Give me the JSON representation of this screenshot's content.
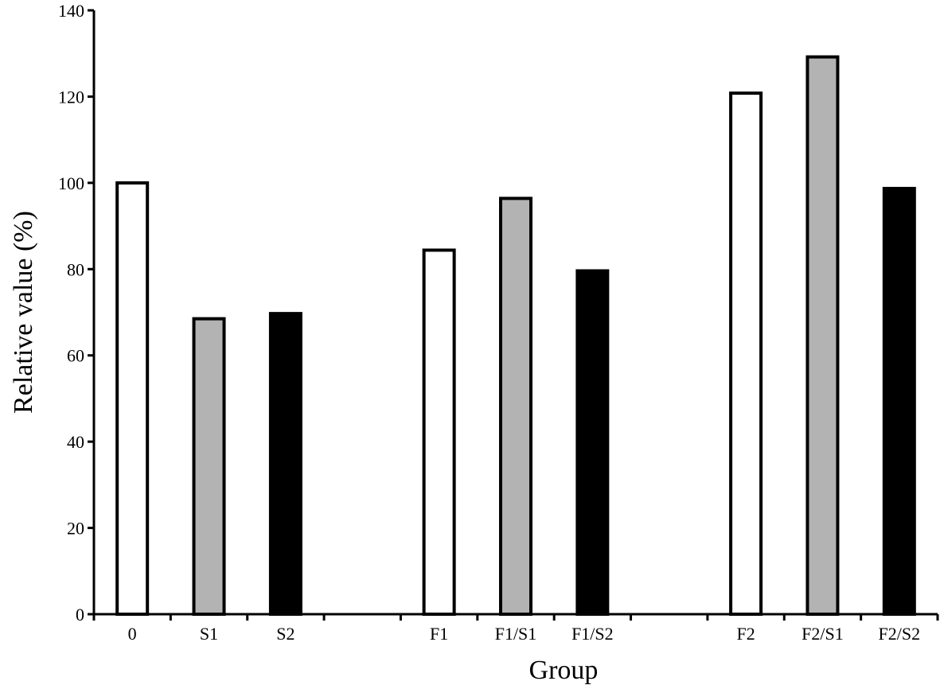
{
  "chart_data": {
    "type": "bar",
    "title": "",
    "xlabel": "Group",
    "ylabel": "Relative value (%)",
    "ylim": [
      0,
      140
    ],
    "yticks": [
      0,
      20,
      40,
      60,
      80,
      100,
      120,
      140
    ],
    "grid": false,
    "legend": "none",
    "categories": [
      "0",
      "S1",
      "S2",
      "",
      "F1",
      "F1/S1",
      "F1/S2",
      "",
      "F2",
      "F2/S1",
      "F2/S2"
    ],
    "values": [
      100,
      68.5,
      69.7,
      null,
      84.4,
      96.4,
      79.6,
      null,
      120.8,
      129.2,
      98.7
    ],
    "bar_colors": [
      "#ffffff",
      "#b3b3b3",
      "#000000",
      null,
      "#ffffff",
      "#b3b3b3",
      "#000000",
      null,
      "#ffffff",
      "#b3b3b3",
      "#000000"
    ]
  }
}
